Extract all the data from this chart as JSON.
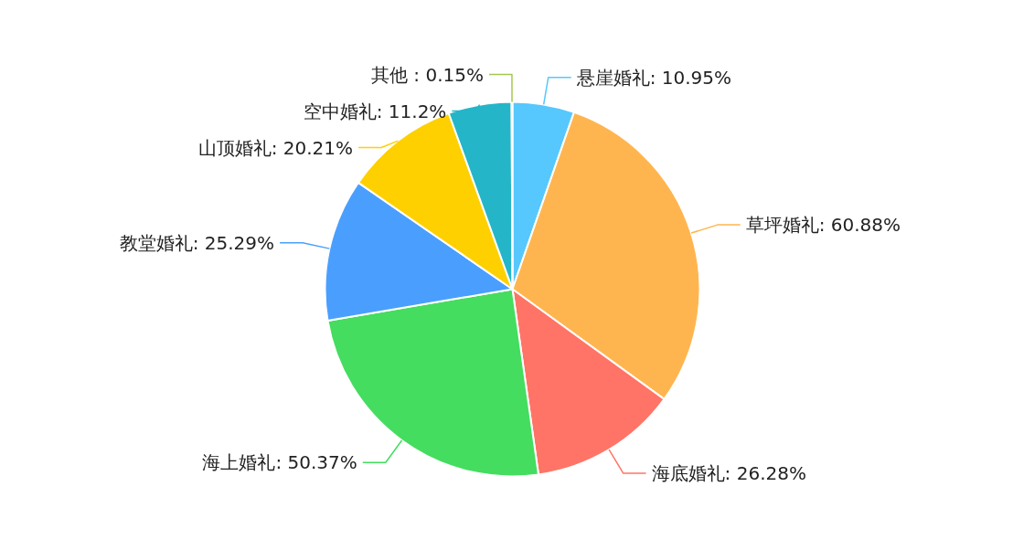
{
  "chart_data": {
    "type": "pie",
    "categories": [
      "悬崖婚礼",
      "草坪婚礼",
      "海底婚礼",
      "海上婚礼",
      "教堂婚礼",
      "山顶婚礼",
      "空中婚礼",
      "其他 "
    ],
    "values": [
      10.95,
      60.88,
      26.28,
      50.37,
      25.29,
      20.21,
      11.2,
      0.15
    ],
    "value_labels": [
      "10.95%",
      "60.88%",
      "26.28%",
      "50.37%",
      "25.29%",
      "20.21%",
      "11.2%",
      "0.15%"
    ],
    "colors": [
      "#56c8fd",
      "#ffb54f",
      "#ff7466",
      "#44dd5f",
      "#4a9ffe",
      "#fed000",
      "#24b6c8",
      "#a5c751"
    ]
  }
}
